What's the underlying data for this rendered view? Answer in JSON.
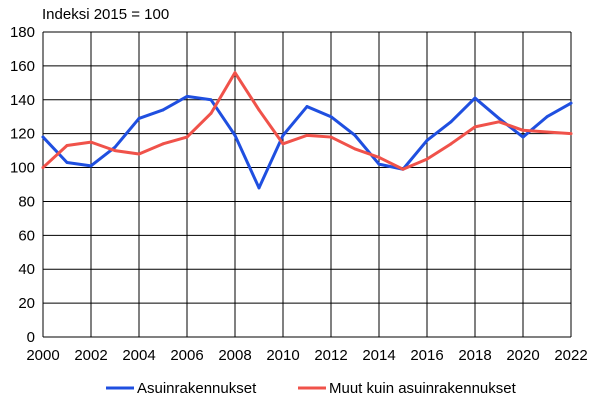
{
  "chart_data": {
    "type": "line",
    "title": "Indeksi 2015 = 100",
    "x": [
      2000,
      2001,
      2002,
      2003,
      2004,
      2005,
      2006,
      2007,
      2008,
      2009,
      2010,
      2011,
      2012,
      2013,
      2014,
      2015,
      2016,
      2017,
      2018,
      2019,
      2020,
      2021,
      2022
    ],
    "xticks": [
      "2000",
      "2002",
      "2004",
      "2006",
      "2008",
      "2010",
      "2012",
      "2014",
      "2016",
      "2018",
      "2020",
      "2022"
    ],
    "yticks": [
      "0",
      "20",
      "40",
      "60",
      "80",
      "100",
      "120",
      "140",
      "160",
      "180"
    ],
    "xlim": [
      2000,
      2022
    ],
    "ylim": [
      0,
      180
    ],
    "grid": true,
    "legend_position": "bottom",
    "series": [
      {
        "name": "Asuinrakennukset",
        "color": "#1f4fe0",
        "values": [
          118,
          103,
          101,
          112,
          129,
          134,
          142,
          140,
          119,
          88,
          119,
          136,
          130,
          119,
          102,
          99,
          116,
          127,
          141,
          129,
          118,
          130,
          138
        ]
      },
      {
        "name": "Muut kuin asuinrakennukset",
        "color": "#f0524a",
        "values": [
          100,
          113,
          115,
          110,
          108,
          114,
          118,
          132,
          156,
          134,
          114,
          119,
          118,
          111,
          106,
          99,
          105,
          114,
          124,
          127,
          122,
          121,
          120
        ]
      }
    ]
  }
}
